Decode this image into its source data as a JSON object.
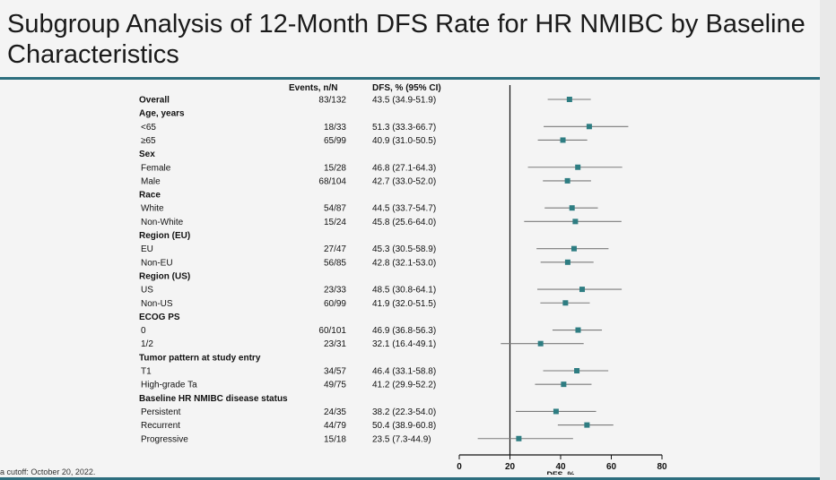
{
  "slide": {
    "title": "Subgroup Analysis of 12-Month DFS Rate for HR NMIBC by Baseline Characteristics",
    "footnote": "a cutoff: October 20, 2022."
  },
  "colors": {
    "accent": "#2d6e7e",
    "marker": "#2e7d82",
    "ci_line": "#7a7a7a"
  },
  "chart_data": {
    "type": "forest",
    "title": "",
    "column_headers": [
      "Events, n/N",
      "DFS, % (95% CI)"
    ],
    "xlabel": "DFS, %",
    "xlim": [
      0,
      80
    ],
    "xticks": [
      0,
      20,
      40,
      60,
      80
    ],
    "reference_line": 20,
    "rows": [
      {
        "label": "Overall",
        "header": true,
        "events": "83/132",
        "ci_text": "43.5 (34.9-51.9)",
        "est": 43.5,
        "lo": 34.9,
        "hi": 51.9
      },
      {
        "label": "Age, years",
        "header": true
      },
      {
        "label": "<65",
        "events": "18/33",
        "ci_text": "51.3 (33.3-66.7)",
        "est": 51.3,
        "lo": 33.3,
        "hi": 66.7
      },
      {
        "label": "≥65",
        "events": "65/99",
        "ci_text": "40.9 (31.0-50.5)",
        "est": 40.9,
        "lo": 31.0,
        "hi": 50.5
      },
      {
        "label": "Sex",
        "header": true
      },
      {
        "label": "Female",
        "events": "15/28",
        "ci_text": "46.8 (27.1-64.3)",
        "est": 46.8,
        "lo": 27.1,
        "hi": 64.3
      },
      {
        "label": "Male",
        "events": "68/104",
        "ci_text": "42.7 (33.0-52.0)",
        "est": 42.7,
        "lo": 33.0,
        "hi": 52.0
      },
      {
        "label": "Race",
        "header": true
      },
      {
        "label": "White",
        "events": "54/87",
        "ci_text": "44.5 (33.7-54.7)",
        "est": 44.5,
        "lo": 33.7,
        "hi": 54.7
      },
      {
        "label": "Non-White",
        "events": "15/24",
        "ci_text": "45.8 (25.6-64.0)",
        "est": 45.8,
        "lo": 25.6,
        "hi": 64.0
      },
      {
        "label": "Region (EU)",
        "header": true
      },
      {
        "label": "EU",
        "events": "27/47",
        "ci_text": "45.3 (30.5-58.9)",
        "est": 45.3,
        "lo": 30.5,
        "hi": 58.9
      },
      {
        "label": "Non-EU",
        "events": "56/85",
        "ci_text": "42.8 (32.1-53.0)",
        "est": 42.8,
        "lo": 32.1,
        "hi": 53.0
      },
      {
        "label": "Region (US)",
        "header": true
      },
      {
        "label": "US",
        "events": "23/33",
        "ci_text": "48.5 (30.8-64.1)",
        "est": 48.5,
        "lo": 30.8,
        "hi": 64.1
      },
      {
        "label": "Non-US",
        "events": "60/99",
        "ci_text": "41.9 (32.0-51.5)",
        "est": 41.9,
        "lo": 32.0,
        "hi": 51.5
      },
      {
        "label": "ECOG PS",
        "header": true
      },
      {
        "label": "0",
        "events": "60/101",
        "ci_text": "46.9 (36.8-56.3)",
        "est": 46.9,
        "lo": 36.8,
        "hi": 56.3
      },
      {
        "label": "1/2",
        "events": "23/31",
        "ci_text": "32.1 (16.4-49.1)",
        "est": 32.1,
        "lo": 16.4,
        "hi": 49.1
      },
      {
        "label": "Tumor pattern at study entry",
        "header": true
      },
      {
        "label": "T1",
        "events": "34/57",
        "ci_text": "46.4 (33.1-58.8)",
        "est": 46.4,
        "lo": 33.1,
        "hi": 58.8
      },
      {
        "label": "High-grade Ta",
        "events": "49/75",
        "ci_text": "41.2 (29.9-52.2)",
        "est": 41.2,
        "lo": 29.9,
        "hi": 52.2
      },
      {
        "label": "Baseline HR NMIBC disease status",
        "header": true
      },
      {
        "label": "Persistent",
        "events": "24/35",
        "ci_text": "38.2 (22.3-54.0)",
        "est": 38.2,
        "lo": 22.3,
        "hi": 54.0
      },
      {
        "label": "Recurrent",
        "events": "44/79",
        "ci_text": "50.4 (38.9-60.8)",
        "est": 50.4,
        "lo": 38.9,
        "hi": 60.8
      },
      {
        "label": "Progressive",
        "events": "15/18",
        "ci_text": "23.5 (7.3-44.9)",
        "est": 23.5,
        "lo": 7.3,
        "hi": 44.9
      }
    ]
  }
}
